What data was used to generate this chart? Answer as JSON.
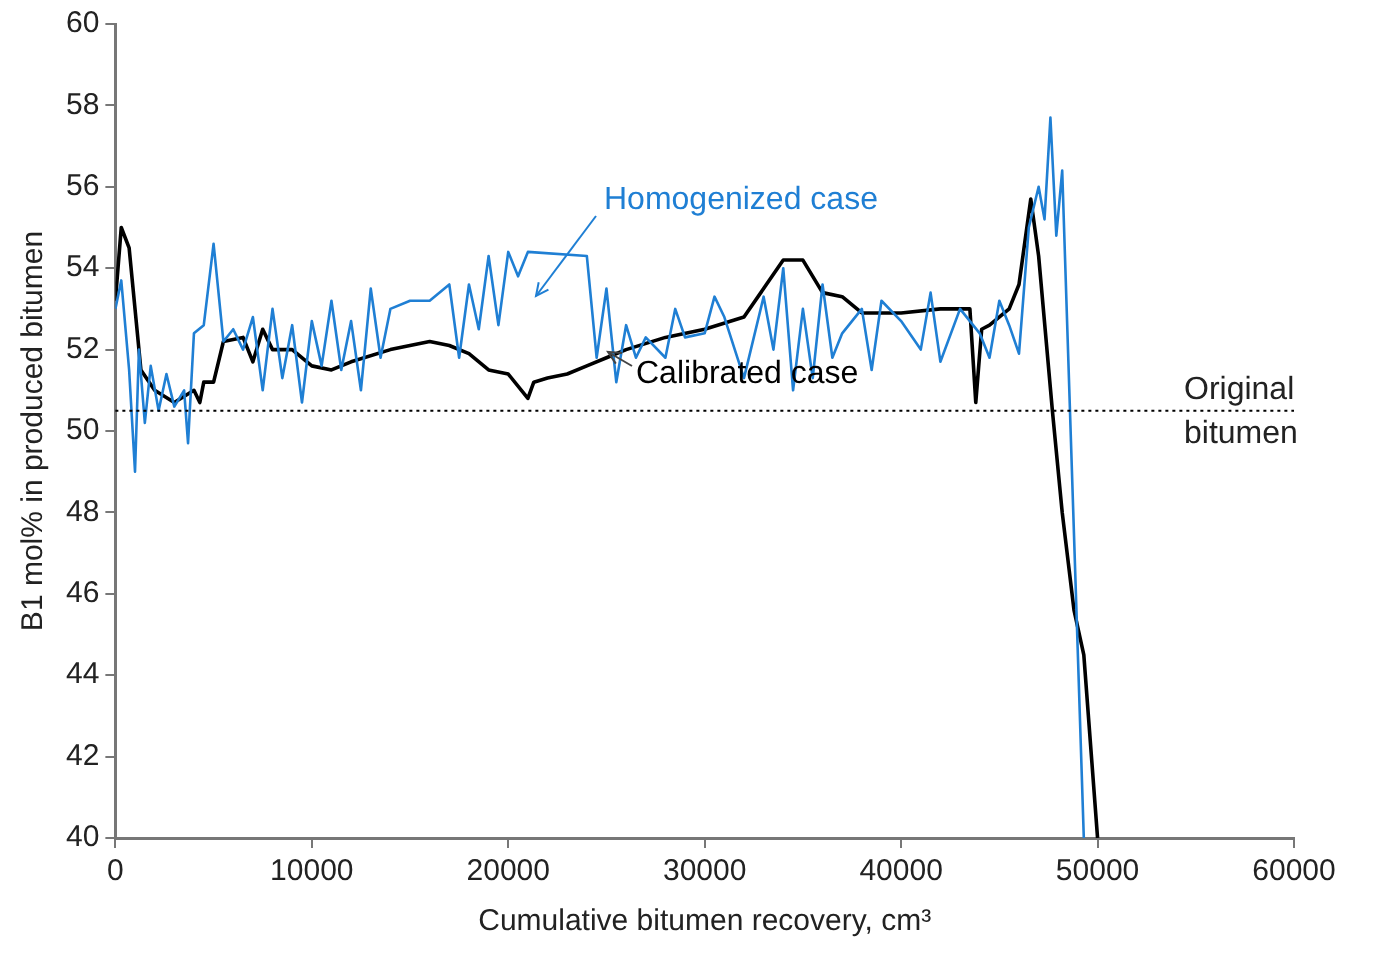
{
  "chart_data": {
    "type": "line",
    "xlabel": "Cumulative bitumen recovery, cm³",
    "ylabel": "B1 mol% in produced bitumen",
    "xlim": [
      0,
      60000
    ],
    "xticks": [
      0,
      10000,
      20000,
      30000,
      40000,
      50000,
      60000
    ],
    "ylim": [
      40,
      60
    ],
    "yticks": [
      40,
      42,
      44,
      46,
      48,
      50,
      52,
      54,
      56,
      58,
      60
    ],
    "grid": false,
    "legend": false,
    "marker": "none",
    "line_style": "solid",
    "ref_lines": [
      {
        "axis": "y",
        "value": 50.5,
        "label": "Original bitumen",
        "color": "#000000",
        "line_style": "dotted"
      }
    ],
    "series": [
      {
        "name": "Homogenized case",
        "color": "#1f7fd4",
        "x": [
          0,
          300,
          700,
          1000,
          1200,
          1500,
          1800,
          2200,
          2600,
          3000,
          3500,
          3700,
          4000,
          4500,
          5000,
          5500,
          6000,
          6500,
          7000,
          7500,
          8000,
          8500,
          9000,
          9500,
          10000,
          10500,
          11000,
          11500,
          12000,
          12500,
          13000,
          13500,
          14000,
          15000,
          16000,
          17000,
          17500,
          18000,
          18500,
          19000,
          19500,
          20000,
          20500,
          21000,
          24000,
          24500,
          25000,
          25500,
          26000,
          26500,
          27000,
          28000,
          28500,
          29000,
          30000,
          30500,
          31000,
          32000,
          33000,
          33500,
          34000,
          34500,
          35000,
          35500,
          36000,
          36500,
          37000,
          38000,
          38500,
          39000,
          40000,
          41000,
          41500,
          42000,
          43000,
          44000,
          44500,
          45000,
          45500,
          46000,
          46500,
          47000,
          47300,
          47600,
          47900,
          48200,
          49300
        ],
        "values": [
          53.0,
          53.7,
          51.5,
          49.0,
          52.0,
          50.2,
          51.6,
          50.5,
          51.4,
          50.6,
          51.0,
          49.7,
          52.4,
          52.6,
          54.6,
          52.2,
          52.5,
          52.0,
          52.8,
          51.0,
          53.0,
          51.3,
          52.6,
          50.7,
          52.7,
          51.6,
          53.2,
          51.5,
          52.7,
          51.0,
          53.5,
          51.8,
          53.0,
          53.2,
          53.2,
          53.6,
          51.8,
          53.6,
          52.5,
          54.3,
          52.6,
          54.4,
          53.8,
          54.4,
          54.3,
          51.8,
          53.5,
          51.2,
          52.6,
          51.8,
          52.3,
          51.8,
          53.0,
          52.3,
          52.4,
          53.3,
          52.8,
          51.3,
          53.3,
          52.0,
          54.0,
          51.0,
          53.0,
          51.3,
          53.6,
          51.8,
          52.4,
          53.0,
          51.5,
          53.2,
          52.7,
          52.0,
          53.4,
          51.7,
          53.0,
          52.4,
          51.8,
          53.2,
          52.6,
          51.9,
          55.0,
          56.0,
          55.2,
          57.7,
          54.8,
          56.4,
          40.0
        ]
      },
      {
        "name": "Calibrated case",
        "color": "#000000",
        "x": [
          0,
          300,
          700,
          1000,
          1300,
          2000,
          3000,
          4000,
          4300,
          4500,
          5000,
          5500,
          6500,
          7000,
          7500,
          8000,
          9000,
          10000,
          11000,
          12000,
          14000,
          16000,
          17000,
          18000,
          19000,
          20000,
          21000,
          21300,
          22000,
          23000,
          24000,
          25000,
          26000,
          28000,
          30000,
          32000,
          33000,
          34000,
          35000,
          36000,
          37000,
          38000,
          40000,
          42000,
          43500,
          43800,
          44100,
          44500,
          45500,
          46000,
          46600,
          47000,
          47700,
          48200,
          48800,
          49300,
          50000
        ],
        "values": [
          53.2,
          55.0,
          54.5,
          53.0,
          51.5,
          51.0,
          50.7,
          51.0,
          50.7,
          51.2,
          51.2,
          52.2,
          52.3,
          51.7,
          52.5,
          52.0,
          52.0,
          51.6,
          51.5,
          51.7,
          52.0,
          52.2,
          52.1,
          51.9,
          51.5,
          51.4,
          50.8,
          51.2,
          51.3,
          51.4,
          51.6,
          51.8,
          52.0,
          52.3,
          52.5,
          52.8,
          53.5,
          54.2,
          54.2,
          53.4,
          53.3,
          52.9,
          52.9,
          53.0,
          53.0,
          50.7,
          52.5,
          52.6,
          53.0,
          53.6,
          55.7,
          54.3,
          50.5,
          48.0,
          45.6,
          44.5,
          40.0
        ]
      }
    ]
  }
}
